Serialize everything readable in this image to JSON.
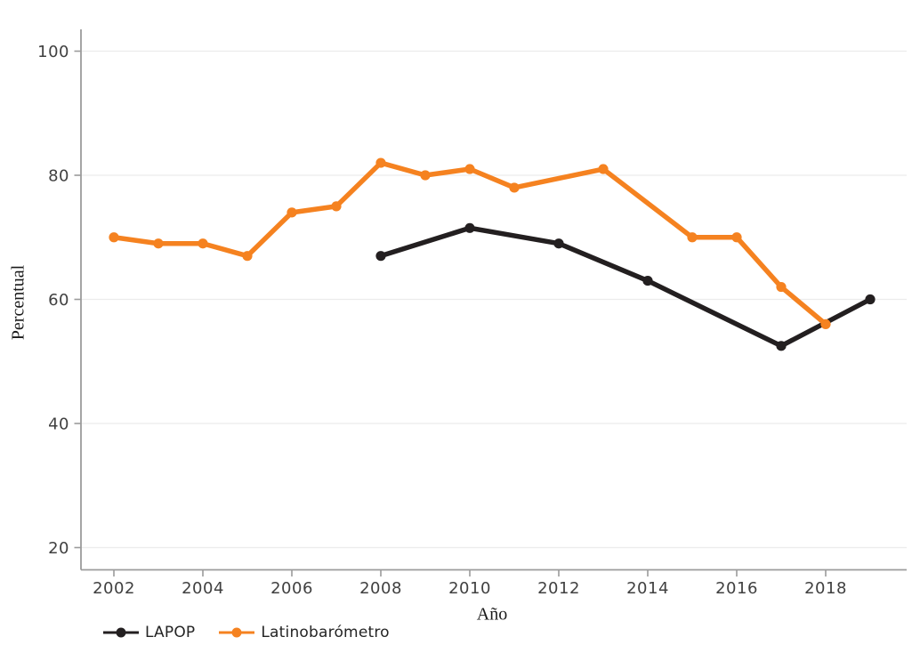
{
  "chart_data": {
    "type": "line",
    "title": "",
    "xlabel": "Año",
    "ylabel": "Percentual",
    "xlim": [
      2001.25,
      2019.8
    ],
    "ylim": [
      20,
      100
    ],
    "xticks": [
      2002,
      2004,
      2006,
      2008,
      2010,
      2012,
      2014,
      2016,
      2018
    ],
    "yticks": [
      20,
      40,
      60,
      80,
      100
    ],
    "grid": "horizontal-only",
    "legend_position": "bottom-left",
    "series": [
      {
        "name": "LAPOP",
        "color": "#231f20",
        "points": [
          {
            "x": 2008,
            "y": 67
          },
          {
            "x": 2010,
            "y": 71.5
          },
          {
            "x": 2012,
            "y": 69
          },
          {
            "x": 2014,
            "y": 63
          },
          {
            "x": 2017,
            "y": 52.5
          },
          {
            "x": 2019,
            "y": 60
          }
        ]
      },
      {
        "name": "Latinobarómetro",
        "color": "#f58220",
        "points": [
          {
            "x": 2002,
            "y": 70
          },
          {
            "x": 2003,
            "y": 69
          },
          {
            "x": 2004,
            "y": 69
          },
          {
            "x": 2005,
            "y": 67
          },
          {
            "x": 2006,
            "y": 74
          },
          {
            "x": 2007,
            "y": 75
          },
          {
            "x": 2008,
            "y": 82
          },
          {
            "x": 2009,
            "y": 80
          },
          {
            "x": 2010,
            "y": 81
          },
          {
            "x": 2011,
            "y": 78
          },
          {
            "x": 2013,
            "y": 81
          },
          {
            "x": 2015,
            "y": 70
          },
          {
            "x": 2016,
            "y": 70
          },
          {
            "x": 2017,
            "y": 62
          },
          {
            "x": 2018,
            "y": 56
          }
        ]
      }
    ],
    "colors": {
      "grid": "#ececec",
      "axis": "#9b9b9b",
      "tick_label": "#404040"
    }
  }
}
